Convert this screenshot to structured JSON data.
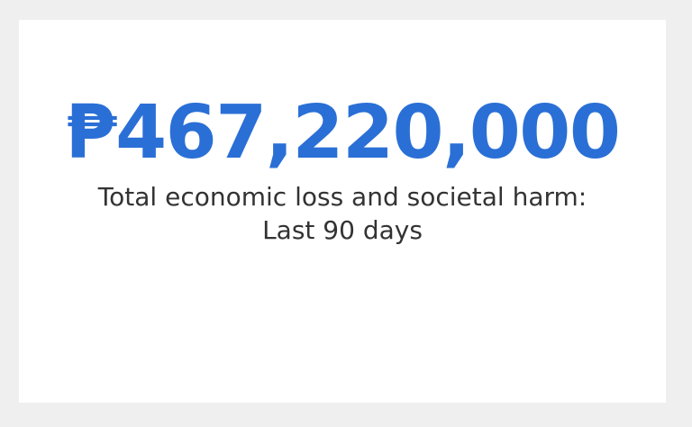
{
  "stat": {
    "amount": "₱467,220,000",
    "caption_line1": "Total economic loss and societal harm:",
    "caption_line2": "Last 90 days",
    "accent_color": "#2a6fd6",
    "text_color": "#333333"
  }
}
